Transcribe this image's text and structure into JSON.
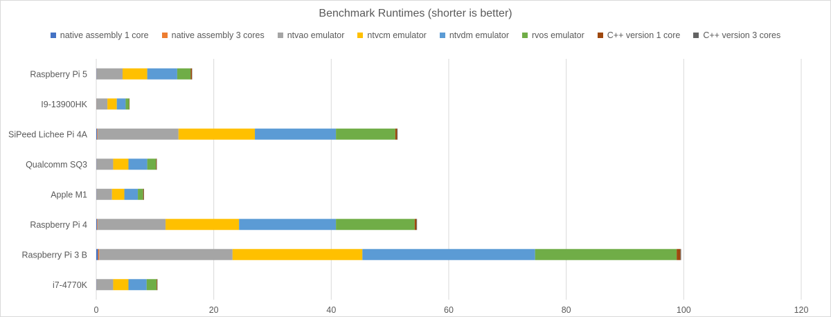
{
  "chart_data": {
    "type": "bar",
    "orientation": "horizontal",
    "stacked": true,
    "title": "Benchmark Runtimes (shorter is better)",
    "xlim": [
      0,
      120
    ],
    "xticks": [
      0,
      20,
      40,
      60,
      80,
      100,
      120
    ],
    "grid": "vertical",
    "legend_position": "top",
    "categories": [
      "Raspberry Pi 5",
      "I9-13900HK",
      "SiPeed Lichee Pi 4A",
      "Qualcomm SQ3",
      "Apple M1",
      "Raspberry Pi 4",
      "Raspberry Pi 3 B",
      "i7-4770K"
    ],
    "series": [
      {
        "name": "native assembly 1 core",
        "color": "#4472c4",
        "values": [
          0.05,
          0.03,
          0.15,
          0.05,
          0.05,
          0.15,
          0.3,
          0.05
        ]
      },
      {
        "name": "native assembly 3 cores",
        "color": "#ed7d31",
        "values": [
          0.03,
          0.02,
          0.1,
          0.03,
          0.03,
          0.1,
          0.2,
          0.03
        ]
      },
      {
        "name": "ntvao emulator",
        "color": "#a5a5a5",
        "values": [
          4.4,
          1.85,
          13.75,
          2.8,
          2.6,
          11.55,
          22.7,
          2.8
        ]
      },
      {
        "name": "ntvcm emulator",
        "color": "#ffc000",
        "values": [
          4.2,
          1.6,
          13.0,
          2.6,
          2.1,
          12.5,
          22.1,
          2.6
        ]
      },
      {
        "name": "ntvdm emulator",
        "color": "#5b9bd5",
        "values": [
          5.1,
          1.5,
          13.8,
          3.2,
          2.3,
          16.5,
          29.4,
          3.1
        ]
      },
      {
        "name": "rvos emulator",
        "color": "#70ad47",
        "values": [
          2.3,
          0.6,
          10.1,
          1.5,
          0.9,
          13.4,
          24.1,
          1.7
        ]
      },
      {
        "name": "C++ version 1 core",
        "color": "#9e480e",
        "values": [
          0.2,
          0.05,
          0.3,
          0.1,
          0.1,
          0.3,
          0.65,
          0.1
        ]
      },
      {
        "name": "C++ version 3 cores",
        "color": "#636363",
        "values": [
          0.05,
          0.02,
          0.1,
          0.05,
          0.05,
          0.1,
          0.1,
          0.05
        ]
      }
    ]
  }
}
